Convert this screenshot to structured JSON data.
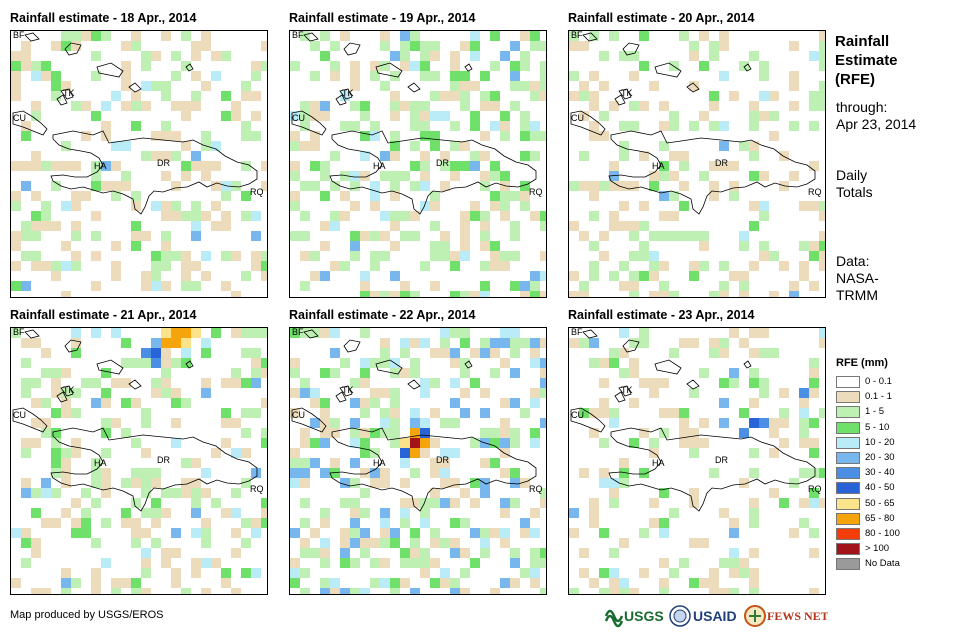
{
  "panels": [
    {
      "title": "Rainfall estimate - 18 Apr., 2014"
    },
    {
      "title": "Rainfall estimate - 19 Apr., 2014"
    },
    {
      "title": "Rainfall estimate - 20 Apr., 2014"
    },
    {
      "title": "Rainfall estimate - 21 Apr., 2014"
    },
    {
      "title": "Rainfall estimate - 22 Apr., 2014"
    },
    {
      "title": "Rainfall estimate - 23 Apr., 2014"
    }
  ],
  "map_labels": {
    "bf": "BF",
    "tk": "TK",
    "cu": "CU",
    "ha": "HA",
    "dr": "DR",
    "rq": "RQ"
  },
  "sidebar": {
    "heading": [
      "Rainfall",
      "Estimate",
      "(RFE)"
    ],
    "through_label": "through:",
    "through_date": "Apr 23, 2014",
    "totals": [
      "Daily",
      "Totals"
    ],
    "data_source": [
      "Data:",
      "NASA-",
      "TRMM"
    ]
  },
  "legend": {
    "title": "RFE (mm)",
    "items": [
      {
        "label": "0 - 0.1",
        "color": "#ffffff"
      },
      {
        "label": "0.1 - 1",
        "color": "#ecdcbb"
      },
      {
        "label": "1 - 5",
        "color": "#bdf0b2"
      },
      {
        "label": "5 - 10",
        "color": "#6fe06a"
      },
      {
        "label": "10 - 20",
        "color": "#b9ecf7"
      },
      {
        "label": "20 - 30",
        "color": "#78b6ee"
      },
      {
        "label": "30 - 40",
        "color": "#4b8fe5"
      },
      {
        "label": "40 - 50",
        "color": "#2864d8"
      },
      {
        "label": "50 - 65",
        "color": "#fbe38c"
      },
      {
        "label": "65 - 80",
        "color": "#f5a40c"
      },
      {
        "label": "80 - 100",
        "color": "#f53d0b"
      },
      {
        "label": "> 100",
        "color": "#a2141a"
      },
      {
        "label": "No Data",
        "color": "#9a9a9a"
      }
    ]
  },
  "credit": "Map produced by USGS/EROS",
  "logos": {
    "usgs": "USGS",
    "usaid": "USAID",
    "fews": "FEWS NET"
  }
}
